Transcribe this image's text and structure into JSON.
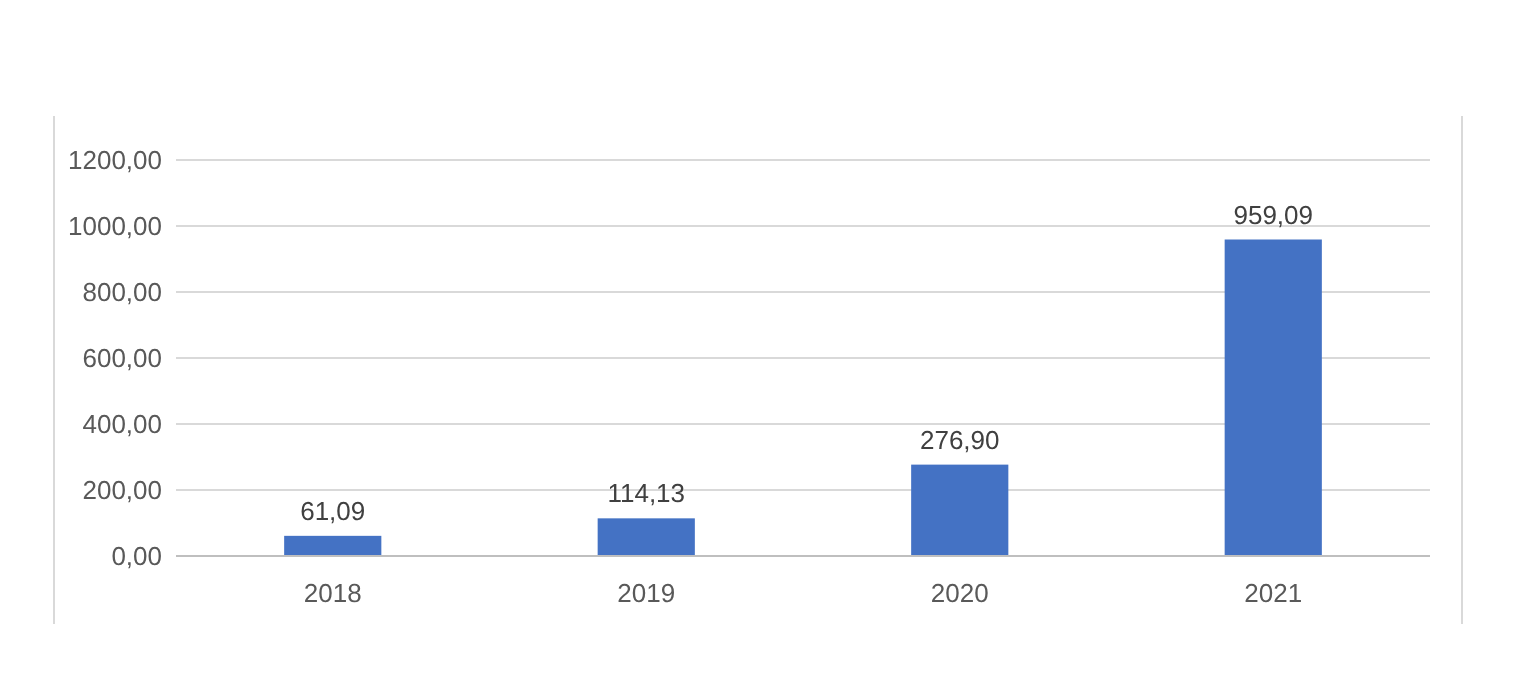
{
  "chart_data": {
    "type": "bar",
    "categories": [
      "2018",
      "2019",
      "2020",
      "2021"
    ],
    "values": [
      61.09,
      114.13,
      276.9,
      959.09
    ],
    "color": "#4472c4",
    "value_labels": [
      "61,09",
      "114,13",
      "276,90",
      "959,09"
    ],
    "ylim": [
      0,
      1200
    ],
    "yticks": [
      {
        "value": 0,
        "label": "0,00"
      },
      {
        "value": 200,
        "label": "200,00"
      },
      {
        "value": 400,
        "label": "400,00"
      },
      {
        "value": 600,
        "label": "600,00"
      },
      {
        "value": 800,
        "label": "800,00"
      },
      {
        "value": 1000,
        "label": "1000,00"
      },
      {
        "value": 1200,
        "label": "1200,00"
      }
    ],
    "grid": true
  }
}
